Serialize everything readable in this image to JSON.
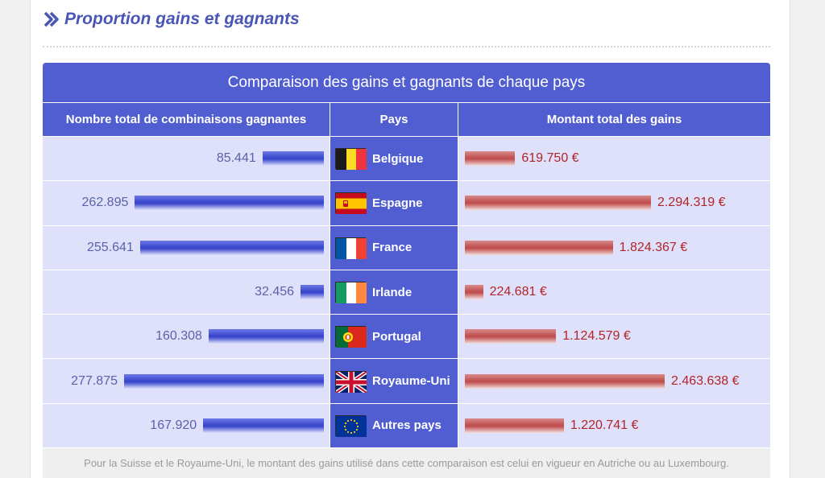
{
  "section": {
    "title": "Proportion gains et gagnants"
  },
  "table": {
    "title": "Comparaison des gains et gagnants de chaque pays",
    "headers": {
      "winners": "Nombre total de combinaisons gagnantes",
      "country": "Pays",
      "amount": "Montant total des gains"
    },
    "footnote": "Pour la Suisse et le Royaume-Uni, le montant des gains utilisé dans cette comparaison est celui en vigueur en Autriche ou au Luxembourg."
  },
  "colors": {
    "header_bg": "#505ed1",
    "row_bg": "#dfe1fb",
    "blue_bar": "#3a48cc",
    "red_bar": "#c05050",
    "amount_text": "#b3242a"
  },
  "chart_data": {
    "type": "bar",
    "categories": [
      "Belgique",
      "Espagne",
      "France",
      "Irlande",
      "Portugal",
      "Royaume-Uni",
      "Autres pays"
    ],
    "series": [
      {
        "name": "Nombre total de combinaisons gagnantes",
        "values": [
          85441,
          262895,
          255641,
          32456,
          160308,
          277875,
          167920
        ]
      },
      {
        "name": "Montant total des gains",
        "values": [
          619750,
          2294319,
          1824367,
          224681,
          1124579,
          2463638,
          1220741
        ]
      }
    ]
  },
  "rows": [
    {
      "country": "Belgique",
      "flag": "flag-belgium",
      "winners": 85441,
      "winners_text": "85.441",
      "amount": 619750,
      "amount_text": "619.750 €"
    },
    {
      "country": "Espagne",
      "flag": "flag-spain",
      "winners": 262895,
      "winners_text": "262.895",
      "amount": 2294319,
      "amount_text": "2.294.319 €"
    },
    {
      "country": "France",
      "flag": "flag-france",
      "winners": 255641,
      "winners_text": "255.641",
      "amount": 1824367,
      "amount_text": "1.824.367 €"
    },
    {
      "country": "Irlande",
      "flag": "flag-ireland",
      "winners": 32456,
      "winners_text": "32.456",
      "amount": 224681,
      "amount_text": "224.681 €"
    },
    {
      "country": "Portugal",
      "flag": "flag-portugal",
      "winners": 160308,
      "winners_text": "160.308",
      "amount": 1124579,
      "amount_text": "1.124.579 €"
    },
    {
      "country": "Royaume-Uni",
      "flag": "flag-uk",
      "winners": 277875,
      "winners_text": "277.875",
      "amount": 2463638,
      "amount_text": "2.463.638 €"
    },
    {
      "country": "Autres pays",
      "flag": "flag-eu",
      "winners": 167920,
      "winners_text": "167.920",
      "amount": 1220741,
      "amount_text": "1.220.741 €"
    }
  ]
}
